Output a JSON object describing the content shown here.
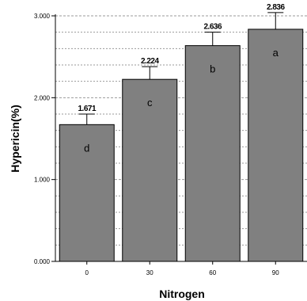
{
  "chart_data": {
    "type": "bar",
    "categories": [
      "0",
      "30",
      "60",
      "90"
    ],
    "values": [
      1.671,
      2.224,
      2.636,
      2.836
    ],
    "value_labels": [
      "1.671",
      "2.224",
      "2.636",
      "2.836"
    ],
    "error_upper": [
      1.8,
      2.38,
      2.8,
      3.04
    ],
    "group_letters": [
      "d",
      "c",
      "b",
      "a"
    ],
    "xlabel": "Nitrogen",
    "ylabel": "Hypericin(%)",
    "ylim": [
      0,
      3.0
    ],
    "yticks": [
      0,
      1,
      2,
      3
    ],
    "ytick_labels": [
      "0.000",
      "1.000",
      "2.000",
      "3.000"
    ],
    "gridlines_y": [
      0.2,
      0.4,
      0.6,
      0.8,
      1.0,
      1.2,
      1.4,
      1.6,
      1.8,
      2.0,
      2.2,
      2.4,
      2.6,
      2.8,
      3.0
    ],
    "grid": true,
    "colors": {
      "bar": "#808080",
      "bar_stroke": "#000000",
      "grid": "#999999"
    }
  }
}
